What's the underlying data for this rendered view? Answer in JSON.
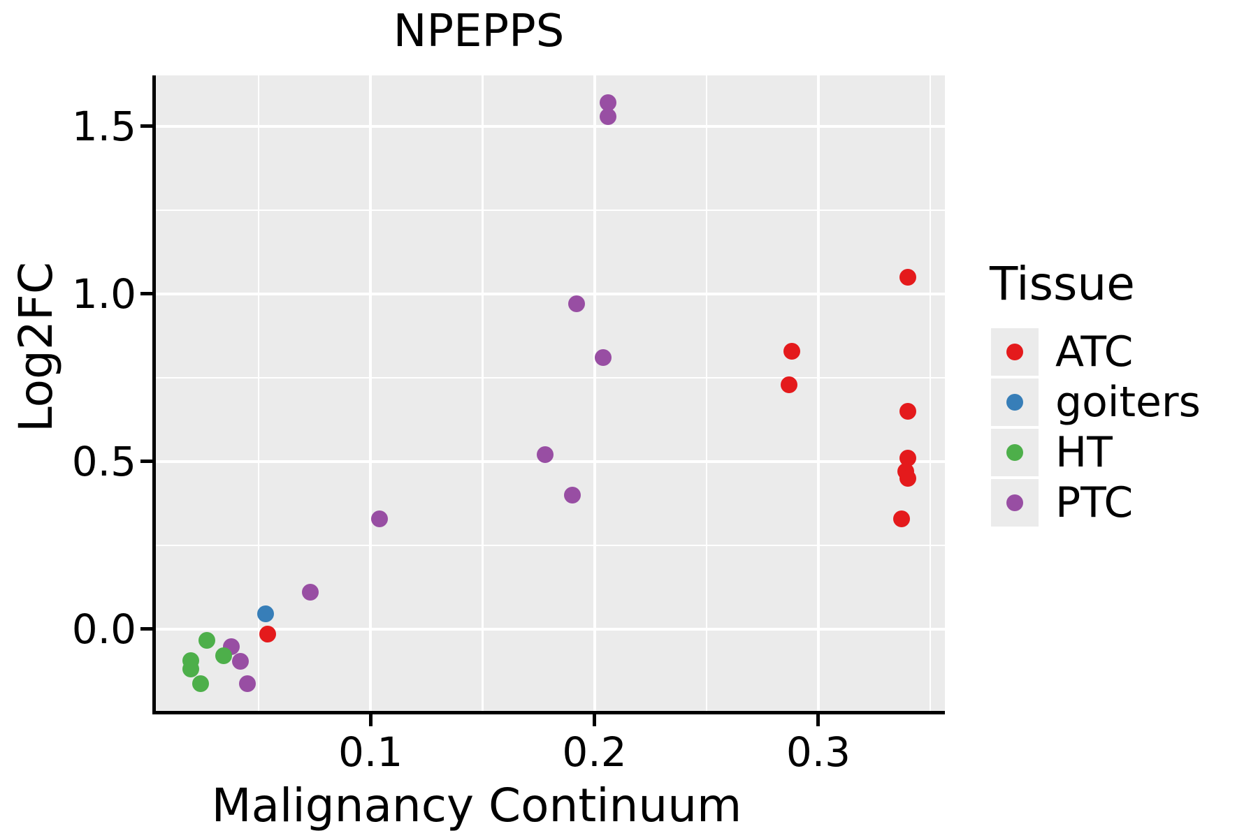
{
  "title": "NPEPPS",
  "axes": {
    "x": {
      "label": "Malignancy Continuum",
      "tick_values": [
        0.1,
        0.2,
        0.3
      ],
      "tick_labels": [
        "0.1",
        "0.2",
        "0.3"
      ],
      "minor_gridlines": [
        0.05,
        0.15,
        0.25,
        0.35
      ],
      "range": [
        0.00415,
        0.3565
      ]
    },
    "y": {
      "label": "Log2FC",
      "tick_values": [
        0.0,
        0.5,
        1.0,
        1.5
      ],
      "tick_labels": [
        "0.0",
        "0.5",
        "1.0",
        "1.5"
      ],
      "minor_gridlines": [
        0.25,
        0.75,
        1.25
      ],
      "range": [
        -0.244,
        1.652
      ]
    }
  },
  "legend": {
    "title": "Tissue",
    "items": [
      {
        "label": "ATC",
        "color": "#E41A1C"
      },
      {
        "label": "goiters",
        "color": "#377EB8"
      },
      {
        "label": "HT",
        "color": "#4DAF4A"
      },
      {
        "label": "PTC",
        "color": "#984EA3"
      }
    ]
  },
  "colors": {
    "panel_background": "#EBEBEB",
    "gridline": "#FFFFFF",
    "axis_line": "#000000",
    "text": "#000000",
    "legend_key_background": "#EBEBEB"
  },
  "chart_data": {
    "type": "scatter",
    "title": "NPEPPS",
    "xlabel": "Malignancy Continuum",
    "ylabel": "Log2FC",
    "xlim": [
      0.00415,
      0.3565
    ],
    "ylim": [
      -0.244,
      1.652
    ],
    "grid": true,
    "legend_position": "right",
    "series": [
      {
        "name": "ATC",
        "color": "#E41A1C",
        "points": [
          [
            0.34,
            1.05
          ],
          [
            0.288,
            0.83
          ],
          [
            0.287,
            0.73
          ],
          [
            0.34,
            0.65
          ],
          [
            0.34,
            0.51
          ],
          [
            0.339,
            0.47
          ],
          [
            0.34,
            0.45
          ],
          [
            0.337,
            0.33
          ],
          [
            0.054,
            -0.014
          ]
        ]
      },
      {
        "name": "goiters",
        "color": "#377EB8",
        "points": [
          [
            0.053,
            0.045
          ]
        ]
      },
      {
        "name": "HT",
        "color": "#4DAF4A",
        "points": [
          [
            0.027,
            -0.033
          ],
          [
            0.0345,
            -0.08
          ],
          [
            0.0196,
            -0.094
          ],
          [
            0.0196,
            -0.118
          ],
          [
            0.024,
            -0.163
          ]
        ]
      },
      {
        "name": "PTC",
        "color": "#984EA3",
        "points": [
          [
            0.206,
            1.57
          ],
          [
            0.206,
            1.53
          ],
          [
            0.192,
            0.97
          ],
          [
            0.204,
            0.81
          ],
          [
            0.178,
            0.52
          ],
          [
            0.19,
            0.4
          ],
          [
            0.104,
            0.33
          ],
          [
            0.073,
            0.11
          ],
          [
            0.038,
            -0.053
          ],
          [
            0.042,
            -0.097
          ],
          [
            0.045,
            -0.163
          ]
        ]
      }
    ]
  }
}
